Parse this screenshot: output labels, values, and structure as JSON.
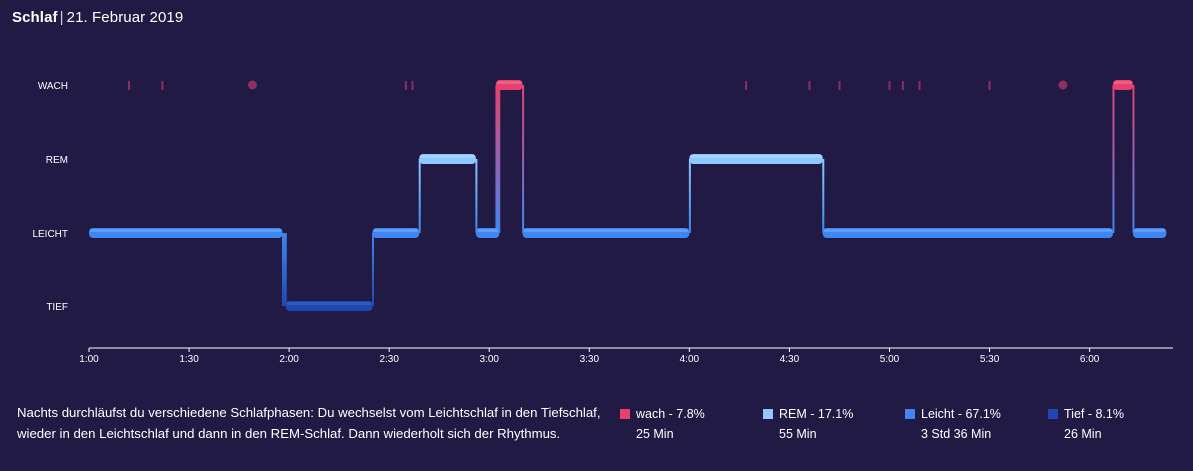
{
  "header": {
    "title": "Schlaf",
    "date": "21. Februar 2019"
  },
  "description": "Nachts durchläufst du verschiedene Schlafphasen: Du wechselst vom Leichtschlaf in den Tiefschlaf, wieder in den Leichtschlaf und dann in den REM-Schlaf. Dann wiederholt sich der Rhythmus.",
  "legend": [
    {
      "label": "wach - 7.8%",
      "duration": "25 Min",
      "color": "#e8406f"
    },
    {
      "label": "REM - 17.1%",
      "duration": "55 Min",
      "color": "#8fc8ff"
    },
    {
      "label": "Leicht - 67.1%",
      "duration": "3 Std 36 Min",
      "color": "#3f86f0"
    },
    {
      "label": "Tief - 8.1%",
      "duration": "26 Min",
      "color": "#1f47b2"
    }
  ],
  "chart_data": {
    "type": "line",
    "stages": [
      "WACH",
      "REM",
      "LEICHT",
      "TIEF"
    ],
    "x_ticks": [
      "1:00",
      "1:30",
      "2:00",
      "2:30",
      "3:00",
      "3:30",
      "4:00",
      "4:30",
      "5:00",
      "5:30",
      "6:00"
    ],
    "x_range": [
      "1:00",
      "6:25"
    ],
    "segments": [
      {
        "stage": "LEICHT",
        "start": "1:00",
        "end": "1:58"
      },
      {
        "stage": "TIEF",
        "start": "1:59",
        "end": "2:25"
      },
      {
        "stage": "LEICHT",
        "start": "2:25",
        "end": "2:39"
      },
      {
        "stage": "REM",
        "start": "2:39",
        "end": "2:56"
      },
      {
        "stage": "LEICHT",
        "start": "2:56",
        "end": "3:03"
      },
      {
        "stage": "WACH",
        "start": "3:02",
        "end": "3:10"
      },
      {
        "stage": "LEICHT",
        "start": "3:10",
        "end": "4:00"
      },
      {
        "stage": "REM",
        "start": "4:00",
        "end": "4:40"
      },
      {
        "stage": "LEICHT",
        "start": "4:40",
        "end": "6:07"
      },
      {
        "stage": "WACH",
        "start": "6:07",
        "end": "6:13"
      },
      {
        "stage": "LEICHT",
        "start": "6:13",
        "end": "6:23"
      }
    ],
    "brief_awakenings": [
      {
        "time": "1:12",
        "kind": "tick"
      },
      {
        "time": "1:22",
        "kind": "tick"
      },
      {
        "time": "1:49",
        "kind": "dot"
      },
      {
        "time": "2:35",
        "kind": "tick"
      },
      {
        "time": "2:37",
        "kind": "tick"
      },
      {
        "time": "4:17",
        "kind": "tick"
      },
      {
        "time": "4:36",
        "kind": "tick"
      },
      {
        "time": "4:45",
        "kind": "tick"
      },
      {
        "time": "5:00",
        "kind": "tick"
      },
      {
        "time": "5:04",
        "kind": "tick"
      },
      {
        "time": "5:09",
        "kind": "tick"
      },
      {
        "time": "5:30",
        "kind": "tick"
      },
      {
        "time": "5:52",
        "kind": "dot"
      }
    ]
  }
}
